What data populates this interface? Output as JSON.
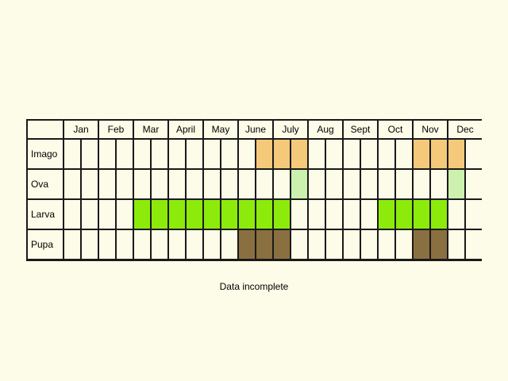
{
  "chart": {
    "months": [
      "Jan",
      "Feb",
      "Mar",
      "April",
      "May",
      "June",
      "July",
      "Aug",
      "Sept",
      "Oct",
      "Nov",
      "Dec"
    ],
    "rows": [
      {
        "label": "Imago",
        "color": "#f5c97a",
        "halves": [
          11,
          12,
          13,
          20,
          21,
          22
        ]
      },
      {
        "label": "Ova",
        "color": "#ccf0ad",
        "halves": [
          13,
          22
        ]
      },
      {
        "label": "Larva",
        "color": "#8ceb0a",
        "halves": [
          4,
          5,
          6,
          7,
          8,
          9,
          10,
          11,
          12,
          18,
          19,
          20,
          21
        ]
      },
      {
        "label": "Pupa",
        "color": "#8a7040",
        "halves": [
          10,
          11,
          12,
          20,
          21
        ]
      }
    ],
    "empty_color": "#fdfce8"
  },
  "footer_note": "Data incomplete"
}
